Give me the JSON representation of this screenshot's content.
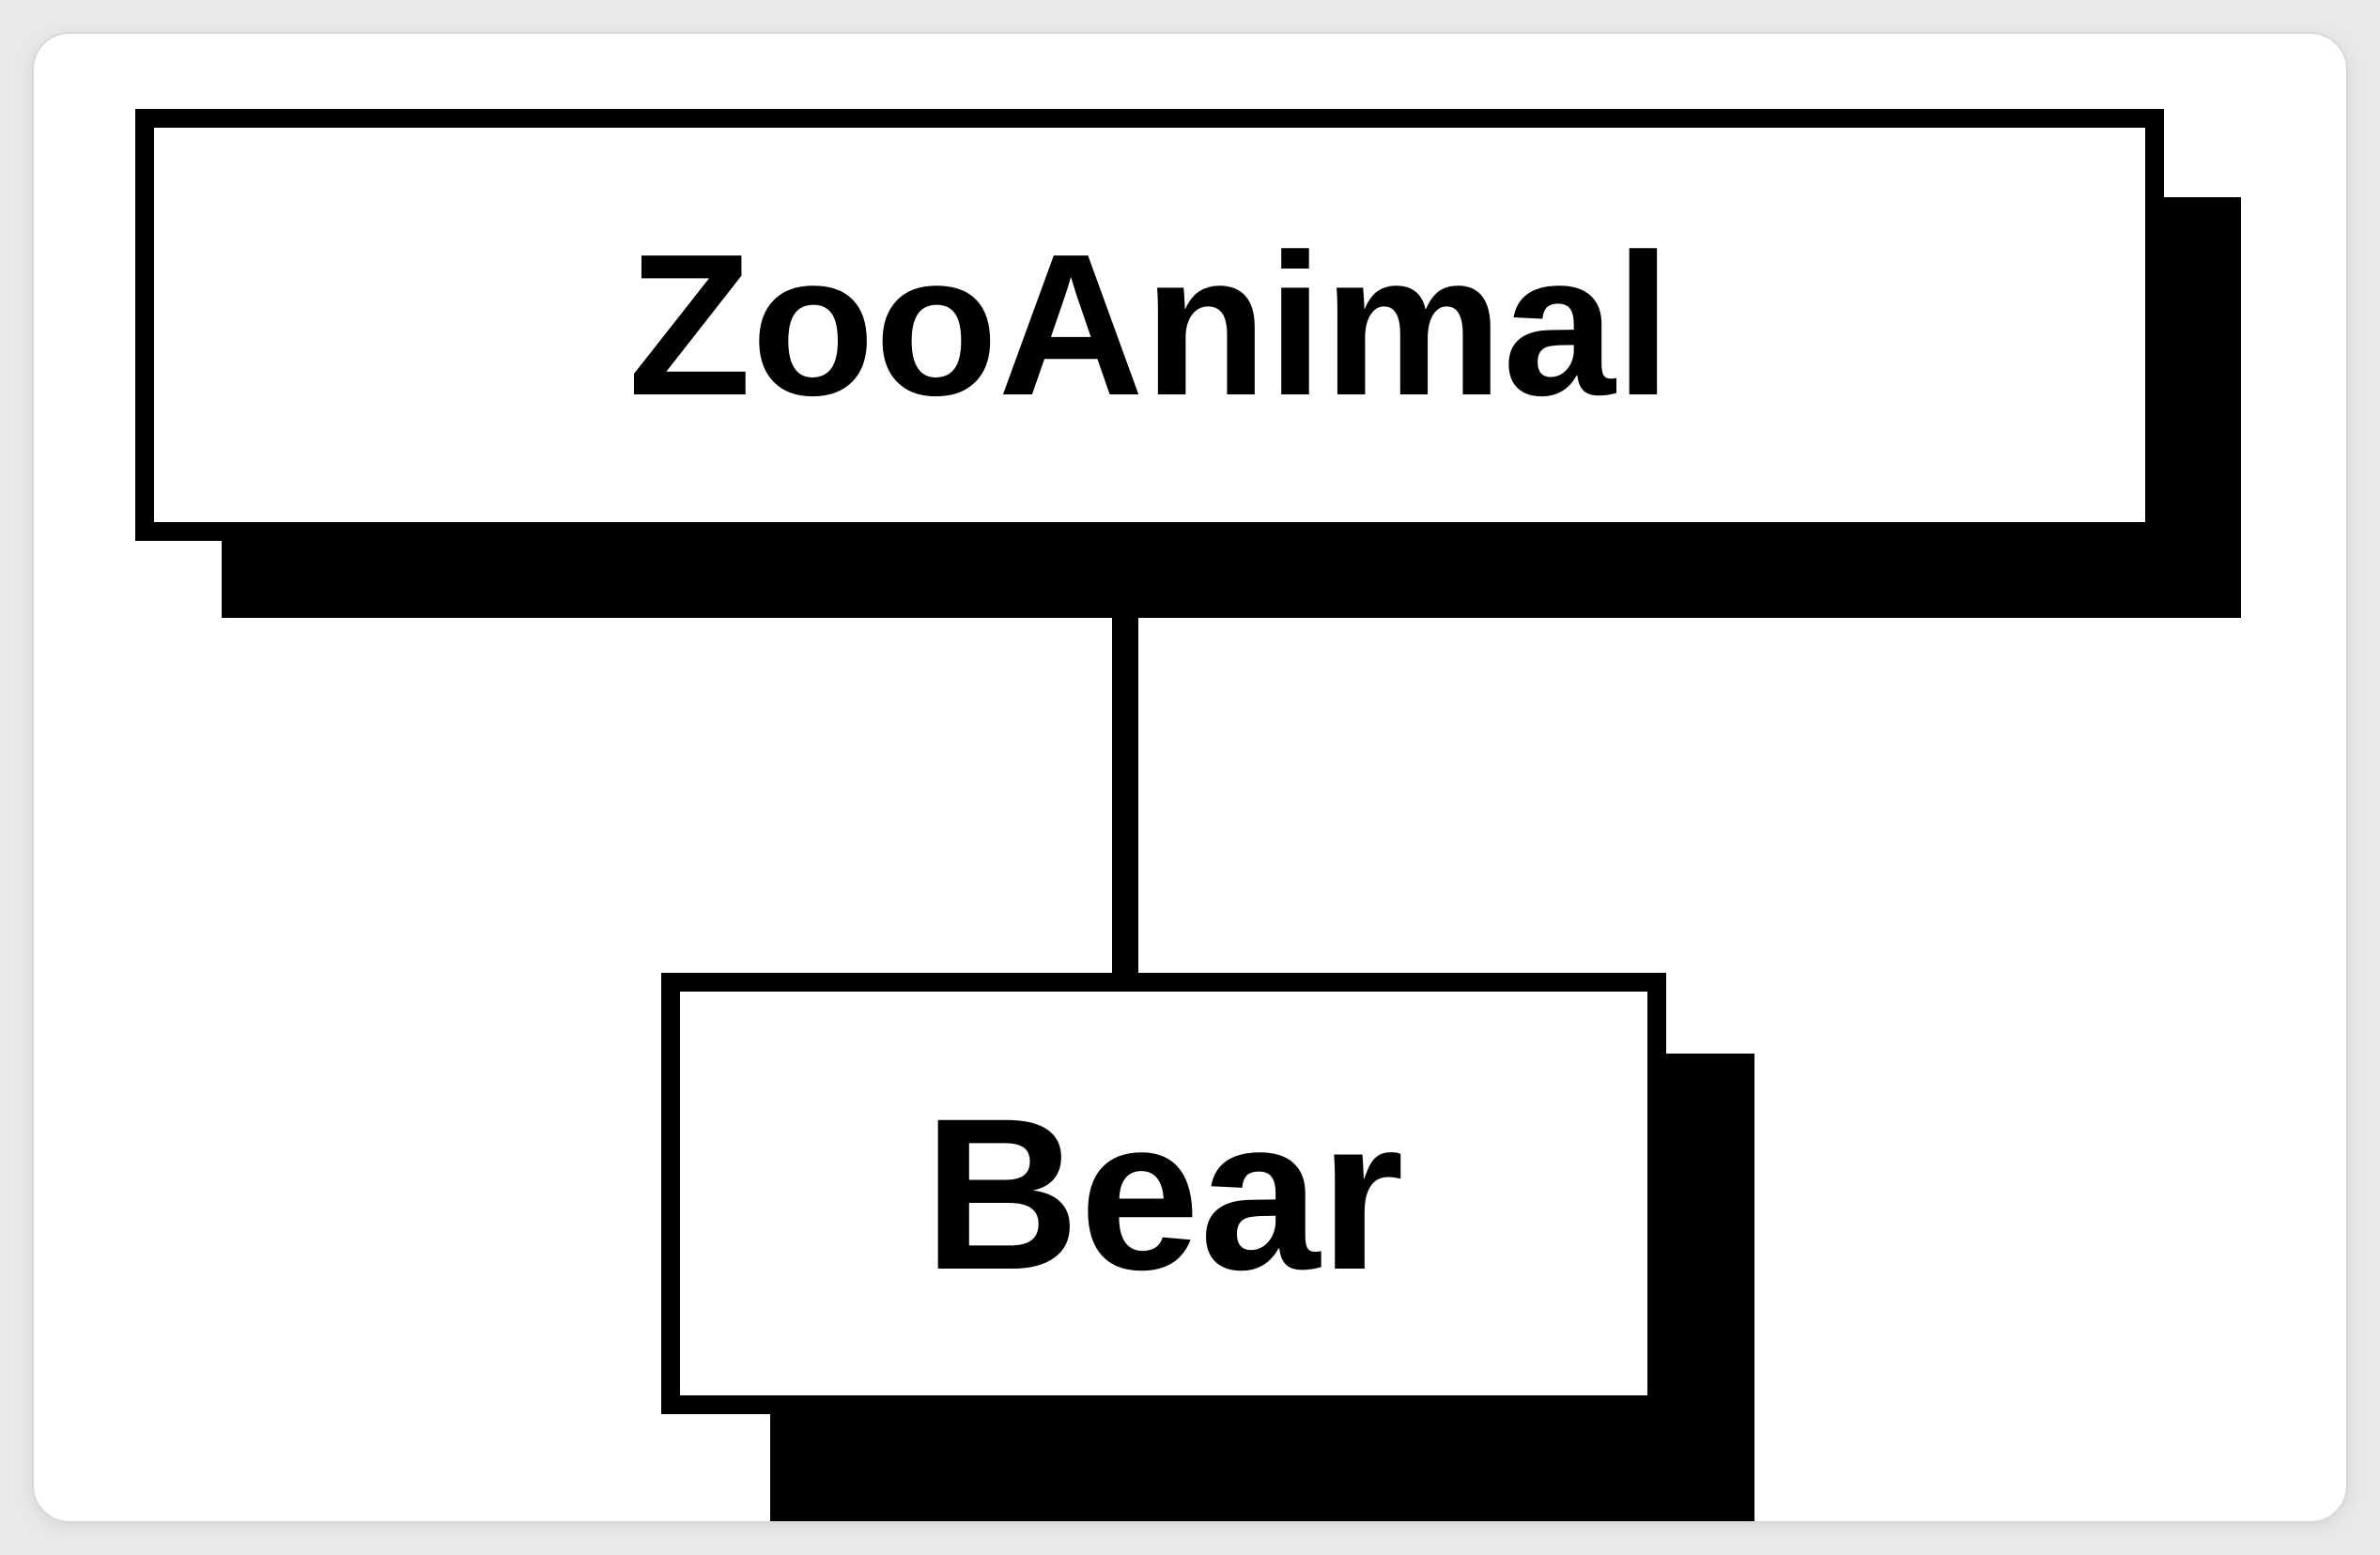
{
  "diagram": {
    "type": "inheritance-hierarchy",
    "nodes": [
      {
        "id": "root",
        "label": "ZooAnimal"
      },
      {
        "id": "child",
        "label": "Bear"
      }
    ],
    "edges": [
      {
        "from": "root",
        "to": "child"
      }
    ],
    "colors": {
      "background": "#ffffff",
      "ink": "#000000"
    }
  }
}
